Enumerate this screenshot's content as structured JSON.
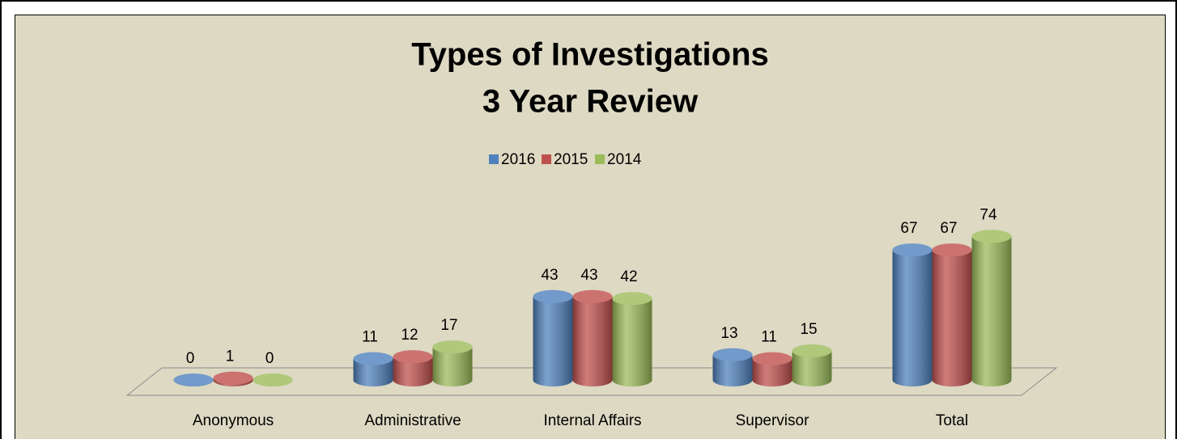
{
  "chart_data": {
    "type": "bar3d",
    "title": "Types of Investigations",
    "subtitle": "3 Year Review",
    "categories": [
      "Anonymous",
      "Administrative",
      "Internal Affairs",
      "Supervisor",
      "Total"
    ],
    "series": [
      {
        "name": "2016",
        "color": "#4f81bd",
        "values": [
          0,
          11,
          43,
          13,
          67
        ]
      },
      {
        "name": "2015",
        "color": "#c0504d",
        "values": [
          1,
          12,
          43,
          11,
          67
        ]
      },
      {
        "name": "2014",
        "color": "#9bbb59",
        "values": [
          0,
          17,
          42,
          15,
          74
        ]
      }
    ],
    "legend": "top"
  }
}
